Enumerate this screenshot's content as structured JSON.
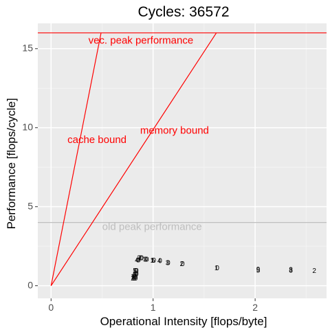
{
  "chart_data": {
    "type": "scatter",
    "title": "Cycles:  36572",
    "xlabel": "Operational Intensity [flops/byte]",
    "ylabel": "Performance [flops/cycle]",
    "xlim": [
      -0.13,
      2.7
    ],
    "ylim": [
      -0.8,
      16.6
    ],
    "x_ticks": [
      0,
      1,
      2
    ],
    "x_tick_labels": [
      "0",
      "1",
      "2"
    ],
    "y_ticks": [
      0,
      5,
      10,
      15
    ],
    "y_tick_labels": [
      "0",
      "5",
      "10",
      "15"
    ],
    "grid": true,
    "legend": "none",
    "colors": {
      "panel": "#ebebeb",
      "grid_major": "#ffffff",
      "grid_minor": "#f5f5f5",
      "roof": "#ff0000",
      "old_roof": "#bebebe",
      "points": "#000000"
    },
    "roofs": [
      {
        "kind": "horizontal",
        "y": 16,
        "color": "#ff0000"
      },
      {
        "kind": "horizontal",
        "y": 4,
        "color": "#bebebe"
      },
      {
        "kind": "line",
        "x": [
          0,
          0.49
        ],
        "y": [
          0,
          16
        ],
        "color": "#ff0000"
      },
      {
        "kind": "line",
        "x": [
          0,
          1.62
        ],
        "y": [
          0,
          16
        ],
        "color": "#ff0000"
      }
    ],
    "annotations": [
      {
        "text": "vec. peak performance",
        "x": 0.88,
        "y": 15.5,
        "color": "#ff0000"
      },
      {
        "text": "cache bound",
        "x": 0.45,
        "y": 9.2,
        "color": "#ff0000"
      },
      {
        "text": "memory bound",
        "x": 1.21,
        "y": 9.8,
        "color": "#ff0000"
      },
      {
        "text": "old peak performance",
        "x": 0.99,
        "y": 3.7,
        "color": "#bebebe"
      }
    ],
    "points": [
      {
        "x": 0.86,
        "y": 1.72,
        "label": "2"
      },
      {
        "x": 0.87,
        "y": 1.72,
        "label": "7"
      },
      {
        "x": 0.88,
        "y": 1.72,
        "label": "0"
      },
      {
        "x": 0.89,
        "y": 1.72,
        "label": "0"
      },
      {
        "x": 0.84,
        "y": 1.6,
        "label": "4"
      },
      {
        "x": 0.85,
        "y": 1.6,
        "label": "0"
      },
      {
        "x": 0.86,
        "y": 1.6,
        "label": "0"
      },
      {
        "x": 0.92,
        "y": 1.65,
        "label": "3"
      },
      {
        "x": 0.93,
        "y": 1.65,
        "label": "0"
      },
      {
        "x": 0.94,
        "y": 1.65,
        "label": "0"
      },
      {
        "x": 0.99,
        "y": 1.58,
        "label": "1"
      },
      {
        "x": 1.0,
        "y": 1.58,
        "label": "5"
      },
      {
        "x": 1.01,
        "y": 1.58,
        "label": "0"
      },
      {
        "x": 1.06,
        "y": 1.55,
        "label": "4"
      },
      {
        "x": 1.07,
        "y": 1.55,
        "label": "0"
      },
      {
        "x": 1.14,
        "y": 1.42,
        "label": "3"
      },
      {
        "x": 1.15,
        "y": 1.42,
        "label": "0"
      },
      {
        "x": 1.28,
        "y": 1.35,
        "label": "2"
      },
      {
        "x": 1.29,
        "y": 1.35,
        "label": "0"
      },
      {
        "x": 1.62,
        "y": 1.1,
        "label": "1"
      },
      {
        "x": 1.63,
        "y": 1.1,
        "label": "0"
      },
      {
        "x": 2.03,
        "y": 1.02,
        "label": "9"
      },
      {
        "x": 2.03,
        "y": 0.95,
        "label": "5"
      },
      {
        "x": 2.35,
        "y": 0.98,
        "label": "8"
      },
      {
        "x": 2.35,
        "y": 0.95,
        "label": "3"
      },
      {
        "x": 2.58,
        "y": 0.92,
        "label": "2"
      },
      {
        "x": 0.82,
        "y": 0.92,
        "label": "5"
      },
      {
        "x": 0.83,
        "y": 0.92,
        "label": "0"
      },
      {
        "x": 0.84,
        "y": 0.92,
        "label": "0"
      },
      {
        "x": 0.82,
        "y": 0.72,
        "label": "9"
      },
      {
        "x": 0.83,
        "y": 0.72,
        "label": "0"
      },
      {
        "x": 0.84,
        "y": 0.72,
        "label": "0"
      },
      {
        "x": 0.8,
        "y": 0.55,
        "label": "1"
      },
      {
        "x": 0.81,
        "y": 0.55,
        "label": "0"
      },
      {
        "x": 0.82,
        "y": 0.55,
        "label": "0"
      },
      {
        "x": 0.83,
        "y": 0.55,
        "label": "0"
      },
      {
        "x": 0.8,
        "y": 0.45,
        "label": "2"
      },
      {
        "x": 0.81,
        "y": 0.45,
        "label": "0"
      },
      {
        "x": 0.82,
        "y": 0.45,
        "label": "0"
      },
      {
        "x": 0.83,
        "y": 0.45,
        "label": "0"
      }
    ]
  }
}
